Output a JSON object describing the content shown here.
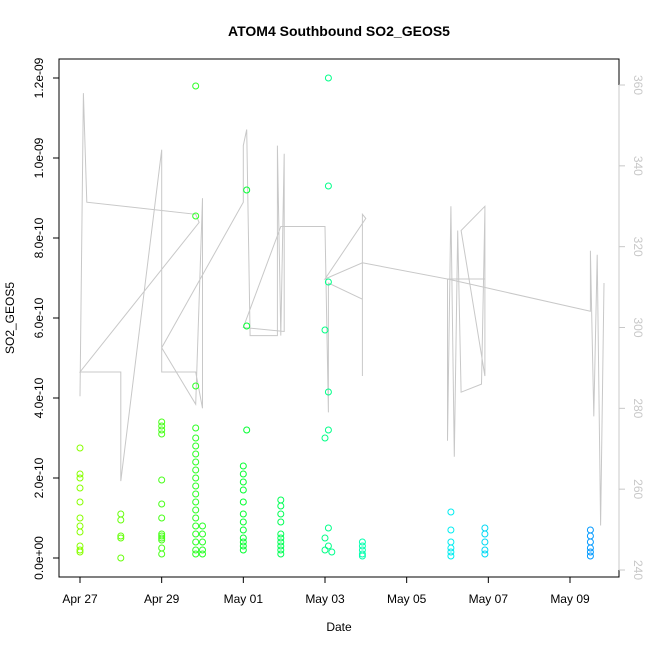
{
  "chart_data": {
    "type": "scatter",
    "title": "ATOM4 Southbound SO2_GEOS5",
    "xlabel": "Date",
    "ylabel": "SO2_GEOS5",
    "x_axis": {
      "unit": "days",
      "range": [
        "2016-04-26T12:00",
        "2016-05-10T12:00"
      ],
      "ticks": [
        {
          "value": "2016-04-27",
          "label": "Apr 27"
        },
        {
          "value": "2016-04-29",
          "label": "Apr 29"
        },
        {
          "value": "2016-05-01",
          "label": "May 01"
        },
        {
          "value": "2016-05-03",
          "label": "May 03"
        },
        {
          "value": "2016-05-05",
          "label": "May 05"
        },
        {
          "value": "2016-05-07",
          "label": "May 07"
        },
        {
          "value": "2016-05-09",
          "label": "May 09"
        }
      ]
    },
    "y_axis": {
      "range": [
        0,
        1.2e-09
      ],
      "ticks": [
        {
          "value": 0,
          "label": "0.0e+00"
        },
        {
          "value": 2e-10,
          "label": "2.0e-10"
        },
        {
          "value": 4e-10,
          "label": "4.0e-10"
        },
        {
          "value": 6e-10,
          "label": "6.0e-10"
        },
        {
          "value": 8e-10,
          "label": "8.0e-10"
        },
        {
          "value": 1e-09,
          "label": "1.0e-09"
        },
        {
          "value": 1.2e-09,
          "label": "1.2e-09"
        }
      ]
    },
    "y2_axis": {
      "range": [
        240,
        360
      ],
      "ticks": [
        {
          "value": 240,
          "label": "240"
        },
        {
          "value": 260,
          "label": "260"
        },
        {
          "value": 280,
          "label": "280"
        },
        {
          "value": 300,
          "label": "300"
        },
        {
          "value": 320,
          "label": "320"
        },
        {
          "value": 340,
          "label": "340"
        },
        {
          "value": 360,
          "label": "360"
        }
      ]
    },
    "series": [
      {
        "kind": "points",
        "y_axis": "left",
        "marker": "open-circle",
        "color_gradient": [
          "#88ff00",
          "#00ff33",
          "#00ffee",
          "#0099ff"
        ],
        "values": [
          [
            "2016-04-27T00:00",
            2.75e-10
          ],
          [
            "2016-04-27T00:00",
            2.1e-10
          ],
          [
            "2016-04-27T00:00",
            2e-10
          ],
          [
            "2016-04-27T00:00",
            1.75e-10
          ],
          [
            "2016-04-27T00:00",
            1.4e-10
          ],
          [
            "2016-04-27T00:00",
            1e-10
          ],
          [
            "2016-04-27T00:00",
            8e-11
          ],
          [
            "2016-04-27T00:00",
            6.5e-11
          ],
          [
            "2016-04-27T00:00",
            3e-11
          ],
          [
            "2016-04-27T00:00",
            2e-11
          ],
          [
            "2016-04-27T00:00",
            1.5e-11
          ],
          [
            "2016-04-28T00:00",
            1.1e-10
          ],
          [
            "2016-04-28T00:00",
            9.5e-11
          ],
          [
            "2016-04-28T00:00",
            5.5e-11
          ],
          [
            "2016-04-28T00:00",
            5e-11
          ],
          [
            "2016-04-28T00:00",
            0
          ],
          [
            "2016-04-29T00:00",
            3.4e-10
          ],
          [
            "2016-04-29T00:00",
            3.3e-10
          ],
          [
            "2016-04-29T00:00",
            3.2e-10
          ],
          [
            "2016-04-29T00:00",
            3.1e-10
          ],
          [
            "2016-04-29T00:00",
            1.95e-10
          ],
          [
            "2016-04-29T00:00",
            1.35e-10
          ],
          [
            "2016-04-29T00:00",
            1e-10
          ],
          [
            "2016-04-29T00:00",
            6e-11
          ],
          [
            "2016-04-29T00:00",
            5.5e-11
          ],
          [
            "2016-04-29T00:00",
            5e-11
          ],
          [
            "2016-04-29T00:00",
            4.5e-11
          ],
          [
            "2016-04-29T00:00",
            2.5e-11
          ],
          [
            "2016-04-29T00:00",
            1e-11
          ],
          [
            "2016-04-29T20:00",
            1.18e-09
          ],
          [
            "2016-04-29T20:00",
            8.55e-10
          ],
          [
            "2016-04-29T20:00",
            4.3e-10
          ],
          [
            "2016-04-29T20:00",
            3.25e-10
          ],
          [
            "2016-04-29T20:00",
            3e-10
          ],
          [
            "2016-04-29T20:00",
            2.8e-10
          ],
          [
            "2016-04-29T20:00",
            2.6e-10
          ],
          [
            "2016-04-29T20:00",
            2.4e-10
          ],
          [
            "2016-04-29T20:00",
            2.2e-10
          ],
          [
            "2016-04-29T20:00",
            2e-10
          ],
          [
            "2016-04-29T20:00",
            1.8e-10
          ],
          [
            "2016-04-29T20:00",
            1.6e-10
          ],
          [
            "2016-04-29T20:00",
            1.4e-10
          ],
          [
            "2016-04-29T20:00",
            1.2e-10
          ],
          [
            "2016-04-29T20:00",
            1e-10
          ],
          [
            "2016-04-29T20:00",
            8e-11
          ],
          [
            "2016-04-29T20:00",
            6e-11
          ],
          [
            "2016-04-29T20:00",
            4e-11
          ],
          [
            "2016-04-29T20:00",
            2e-11
          ],
          [
            "2016-04-29T20:00",
            1e-11
          ],
          [
            "2016-04-30T00:00",
            8e-11
          ],
          [
            "2016-04-30T00:00",
            6e-11
          ],
          [
            "2016-04-30T00:00",
            4e-11
          ],
          [
            "2016-04-30T00:00",
            2e-11
          ],
          [
            "2016-04-30T00:00",
            1e-11
          ],
          [
            "2016-05-01T02:00",
            9.2e-10
          ],
          [
            "2016-05-01T02:00",
            5.8e-10
          ],
          [
            "2016-05-01T02:00",
            3.2e-10
          ],
          [
            "2016-05-01T00:00",
            2.3e-10
          ],
          [
            "2016-05-01T00:00",
            2.1e-10
          ],
          [
            "2016-05-01T00:00",
            1.9e-10
          ],
          [
            "2016-05-01T00:00",
            1.7e-10
          ],
          [
            "2016-05-01T00:00",
            1.4e-10
          ],
          [
            "2016-05-01T00:00",
            1.1e-10
          ],
          [
            "2016-05-01T00:00",
            9e-11
          ],
          [
            "2016-05-01T00:00",
            7e-11
          ],
          [
            "2016-05-01T00:00",
            5e-11
          ],
          [
            "2016-05-01T00:00",
            4e-11
          ],
          [
            "2016-05-01T00:00",
            3e-11
          ],
          [
            "2016-05-01T00:00",
            2e-11
          ],
          [
            "2016-05-01T22:00",
            1.45e-10
          ],
          [
            "2016-05-01T22:00",
            1.3e-10
          ],
          [
            "2016-05-01T22:00",
            1.1e-10
          ],
          [
            "2016-05-01T22:00",
            9e-11
          ],
          [
            "2016-05-01T22:00",
            6e-11
          ],
          [
            "2016-05-01T22:00",
            5e-11
          ],
          [
            "2016-05-01T22:00",
            4e-11
          ],
          [
            "2016-05-01T22:00",
            3e-11
          ],
          [
            "2016-05-01T22:00",
            2e-11
          ],
          [
            "2016-05-01T22:00",
            1e-11
          ],
          [
            "2016-05-03T02:00",
            1.2e-09
          ],
          [
            "2016-05-03T02:00",
            9.3e-10
          ],
          [
            "2016-05-03T02:00",
            6.9e-10
          ],
          [
            "2016-05-03T00:00",
            5.7e-10
          ],
          [
            "2016-05-03T02:00",
            4.15e-10
          ],
          [
            "2016-05-03T02:00",
            3.2e-10
          ],
          [
            "2016-05-03T00:00",
            3e-10
          ],
          [
            "2016-05-03T02:00",
            7.5e-11
          ],
          [
            "2016-05-03T00:00",
            5e-11
          ],
          [
            "2016-05-03T02:00",
            3e-11
          ],
          [
            "2016-05-03T00:00",
            2e-11
          ],
          [
            "2016-05-03T04:00",
            1.5e-11
          ],
          [
            "2016-05-03T22:00",
            4e-11
          ],
          [
            "2016-05-03T22:00",
            3e-11
          ],
          [
            "2016-05-03T22:00",
            2e-11
          ],
          [
            "2016-05-03T22:00",
            1e-11
          ],
          [
            "2016-05-03T22:00",
            5e-12
          ],
          [
            "2016-05-06T02:00",
            1.15e-10
          ],
          [
            "2016-05-06T02:00",
            7e-11
          ],
          [
            "2016-05-06T02:00",
            4e-11
          ],
          [
            "2016-05-06T02:00",
            2.5e-11
          ],
          [
            "2016-05-06T02:00",
            1.5e-11
          ],
          [
            "2016-05-06T02:00",
            5e-12
          ],
          [
            "2016-05-06T22:00",
            7.5e-11
          ],
          [
            "2016-05-06T22:00",
            6e-11
          ],
          [
            "2016-05-06T22:00",
            4e-11
          ],
          [
            "2016-05-06T22:00",
            2e-11
          ],
          [
            "2016-05-06T22:00",
            1e-11
          ],
          [
            "2016-05-09T12:00",
            7e-11
          ],
          [
            "2016-05-09T12:00",
            5.5e-11
          ],
          [
            "2016-05-09T12:00",
            4e-11
          ],
          [
            "2016-05-09T12:00",
            2.5e-11
          ],
          [
            "2016-05-09T12:00",
            1.5e-11
          ],
          [
            "2016-05-09T12:00",
            5e-12
          ]
        ]
      },
      {
        "kind": "line",
        "y_axis": "right",
        "color": "#c8c8c8",
        "values": [
          [
            "2016-04-27T00:00",
            283
          ],
          [
            "2016-04-27T02:00",
            358
          ],
          [
            "2016-04-27T04:00",
            331
          ],
          [
            "2016-04-29T20:00",
            328
          ],
          [
            "2016-04-29T22:00",
            326
          ],
          [
            "2016-04-27T00:00",
            289
          ],
          [
            "2016-04-28T00:00",
            289
          ],
          [
            "2016-04-28T00:00",
            262
          ],
          [
            "2016-04-29T00:00",
            344
          ],
          [
            "2016-04-29T00:00",
            289
          ],
          [
            "2016-04-29T20:00",
            289
          ],
          [
            "2016-04-30T00:00",
            280
          ],
          [
            "2016-04-30T00:00",
            332
          ],
          [
            "2016-04-29T20:00",
            281
          ],
          [
            "2016-04-29T00:00",
            295
          ],
          [
            "2016-05-01T00:00",
            331
          ],
          [
            "2016-05-01T00:00",
            345
          ],
          [
            "2016-05-01T02:00",
            349
          ],
          [
            "2016-05-01T04:00",
            298
          ],
          [
            "2016-05-01T20:00",
            298
          ],
          [
            "2016-05-01T20:00",
            345
          ],
          [
            "2016-05-01T22:00",
            298
          ],
          [
            "2016-05-02T00:00",
            343
          ],
          [
            "2016-05-02T00:00",
            299
          ],
          [
            "2016-05-01T00:00",
            300
          ],
          [
            "2016-05-01T22:00",
            325
          ],
          [
            "2016-05-03T00:00",
            325
          ],
          [
            "2016-05-03T02:00",
            279
          ],
          [
            "2016-05-03T02:00",
            311
          ],
          [
            "2016-05-03T22:00",
            307
          ],
          [
            "2016-05-03T22:00",
            288
          ],
          [
            "2016-05-03T22:00",
            328
          ],
          [
            "2016-05-04T00:00",
            327
          ],
          [
            "2016-05-03T00:00",
            312
          ],
          [
            "2016-05-03T22:00",
            316
          ],
          [
            "2016-05-06T00:00",
            312
          ],
          [
            "2016-05-06T00:00",
            272
          ],
          [
            "2016-05-06T02:00",
            330
          ],
          [
            "2016-05-06T04:00",
            268
          ],
          [
            "2016-05-06T06:00",
            324
          ],
          [
            "2016-05-06T08:00",
            284
          ],
          [
            "2016-05-06T20:00",
            286
          ],
          [
            "2016-05-06T22:00",
            329
          ],
          [
            "2016-05-06T22:00",
            288
          ],
          [
            "2016-05-06T08:00",
            324
          ],
          [
            "2016-05-06T22:00",
            330
          ],
          [
            "2016-05-06T22:00",
            312
          ],
          [
            "2016-05-06T00:00",
            312
          ],
          [
            "2016-05-09T12:00",
            304
          ],
          [
            "2016-05-09T12:00",
            319
          ],
          [
            "2016-05-09T14:00",
            278
          ],
          [
            "2016-05-09T16:00",
            318
          ],
          [
            "2016-05-09T18:00",
            251
          ],
          [
            "2016-05-09T20:00",
            311
          ]
        ]
      }
    ],
    "grid": false,
    "legend": "none"
  }
}
